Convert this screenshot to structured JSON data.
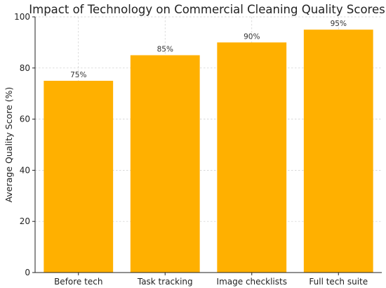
{
  "chart_data": {
    "type": "bar",
    "title": "Impact of Technology on Commercial Cleaning Quality Scores",
    "xlabel": "",
    "ylabel": "Average Quality Score (%)",
    "categories": [
      "Before tech",
      "Task tracking",
      "Image checklists",
      "Full tech suite"
    ],
    "values": [
      75,
      85,
      90,
      95
    ],
    "data_labels": [
      "75%",
      "85%",
      "90%",
      "95%"
    ],
    "ylim": [
      0,
      100
    ],
    "yticks": [
      0,
      20,
      40,
      60,
      80,
      100
    ],
    "grid": true,
    "bar_color": "#FFB000"
  }
}
